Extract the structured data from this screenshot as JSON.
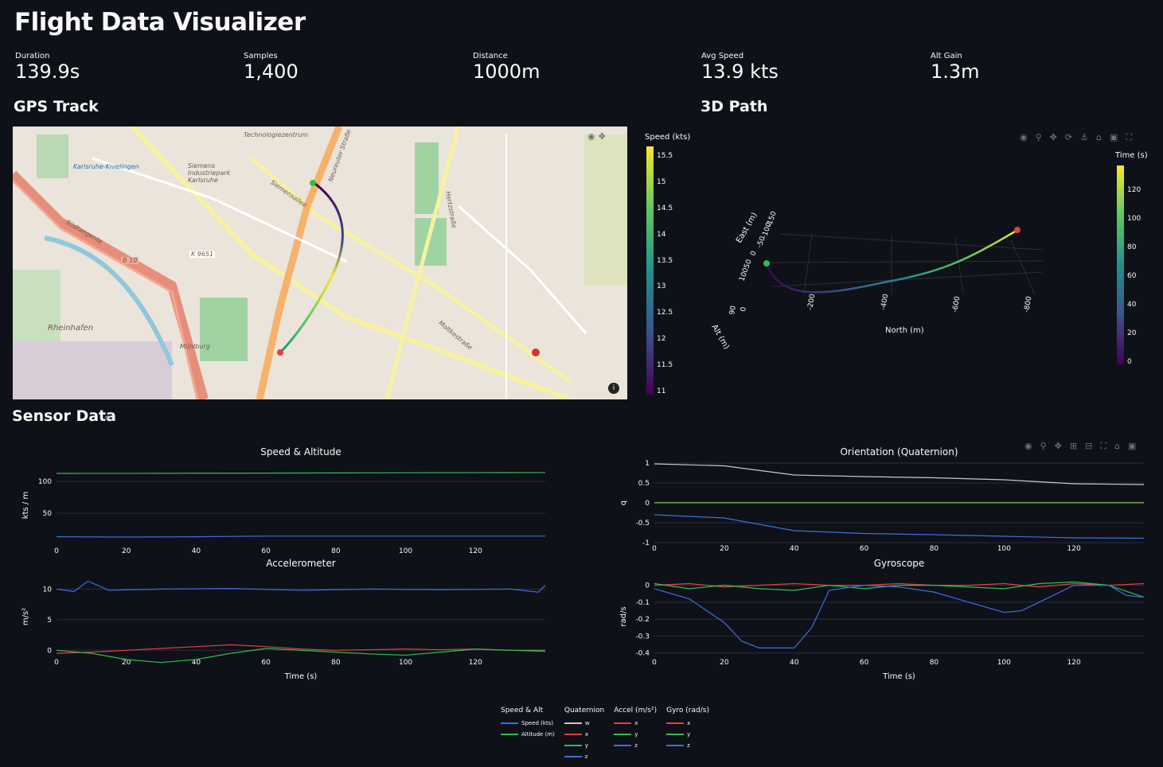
{
  "app": {
    "title": "Flight Data Visualizer"
  },
  "metrics": [
    {
      "label": "Duration",
      "value": "139.9s"
    },
    {
      "label": "Samples",
      "value": "1,400"
    },
    {
      "label": "Distance",
      "value": "1000m"
    },
    {
      "label": "Avg Speed",
      "value": "13.9 kts"
    },
    {
      "label": "Alt Gain",
      "value": "1.3m"
    }
  ],
  "sections": {
    "gps": "GPS Track",
    "path3d": "3D Path",
    "sensor": "Sensor Data"
  },
  "map": {
    "labels": [
      "Karlsruhe-Knielingen",
      "Siemens Industriepark Karlsruhe",
      "Südtangente",
      "B 10",
      "K 9651",
      "Rheinhafen",
      "Mühlburg",
      "Siemensallee",
      "Neureuter Straße",
      "Hertzstraße",
      "Moltkestraße",
      "Technologiezentrum"
    ],
    "colorbar": {
      "title": "Speed (kts)",
      "ticks": [
        "15.5",
        "15",
        "14.5",
        "14",
        "13.5",
        "13",
        "12.5",
        "12",
        "11.5",
        "11"
      ]
    },
    "info_icon": "info-icon"
  },
  "path3d": {
    "colorbar": {
      "title": "Time (s)",
      "ticks": [
        "120",
        "100",
        "80",
        "60",
        "40",
        "20",
        "0"
      ]
    },
    "axes": {
      "x": "North (m)",
      "y": "East (m)",
      "z": "Alt (m)"
    },
    "x_ticks": [
      "-200",
      "-400",
      "-600",
      "-800"
    ],
    "y_ticks": [
      "-150",
      "-100",
      "-50",
      "0",
      "50",
      "100"
    ],
    "z_ticks": [
      "0",
      "90"
    ]
  },
  "chart_data": [
    {
      "type": "line",
      "title": "Speed & Altitude",
      "ylabel": "kts / m",
      "xlabel": "",
      "xlim": [
        0,
        140
      ],
      "ylim": [
        0,
        125
      ],
      "x_ticks": [
        "0",
        "20",
        "40",
        "60",
        "80",
        "100",
        "120"
      ],
      "y_ticks": [
        "50",
        "100"
      ],
      "series": [
        {
          "name": "Speed (kts)",
          "color": "#3b6fe0",
          "x": [
            0,
            20,
            40,
            60,
            80,
            100,
            120,
            140
          ],
          "y": [
            13,
            12.5,
            13,
            14,
            14,
            14,
            14,
            14
          ]
        },
        {
          "name": "Altitude (m)",
          "color": "#2fbf4f",
          "x": [
            0,
            20,
            40,
            60,
            80,
            100,
            120,
            140
          ],
          "y": [
            112.5,
            112.6,
            112.8,
            113.0,
            113.3,
            113.5,
            113.7,
            113.8
          ]
        }
      ]
    },
    {
      "type": "line",
      "title": "Orientation (Quaternion)",
      "ylabel": "q",
      "xlabel": "",
      "xlim": [
        0,
        140
      ],
      "ylim": [
        -1,
        1
      ],
      "x_ticks": [
        "0",
        "20",
        "40",
        "60",
        "80",
        "100",
        "120"
      ],
      "y_ticks": [
        "1",
        "0.5",
        "0",
        "-0.5",
        "-1"
      ],
      "series": [
        {
          "name": "w",
          "color": "#c8c8c8",
          "x": [
            0,
            20,
            40,
            60,
            80,
            100,
            120,
            140
          ],
          "y": [
            0.98,
            0.93,
            0.7,
            0.66,
            0.63,
            0.58,
            0.48,
            0.46
          ]
        },
        {
          "name": "x",
          "color": "#e04040",
          "x": [
            0,
            140
          ],
          "y": [
            0.01,
            0.01
          ]
        },
        {
          "name": "y",
          "color": "#2fbf4f",
          "x": [
            0,
            140
          ],
          "y": [
            0.0,
            0.0
          ]
        },
        {
          "name": "z",
          "color": "#3b6fe0",
          "x": [
            0,
            20,
            40,
            60,
            80,
            100,
            120,
            140
          ],
          "y": [
            -0.3,
            -0.38,
            -0.7,
            -0.77,
            -0.8,
            -0.84,
            -0.88,
            -0.89
          ]
        }
      ]
    },
    {
      "type": "line",
      "title": "Accelerometer",
      "ylabel": "m/s²",
      "xlabel": "Time (s)",
      "xlim": [
        0,
        140
      ],
      "ylim": [
        -1,
        12
      ],
      "x_ticks": [
        "0",
        "20",
        "40",
        "60",
        "80",
        "100",
        "120"
      ],
      "y_ticks": [
        "10",
        "5",
        "0"
      ],
      "series": [
        {
          "name": "x",
          "color": "#e04040",
          "x": [
            0,
            10,
            20,
            30,
            40,
            50,
            60,
            70,
            80,
            90,
            100,
            110,
            120,
            130,
            140
          ],
          "y": [
            -0.5,
            -0.3,
            0,
            0.3,
            0.6,
            0.9,
            0.6,
            0.2,
            0,
            0.1,
            0.2,
            0.1,
            0.2,
            0,
            -0.2
          ]
        },
        {
          "name": "y",
          "color": "#2fbf4f",
          "x": [
            0,
            10,
            20,
            30,
            40,
            50,
            60,
            70,
            80,
            90,
            100,
            110,
            120,
            130,
            140
          ],
          "y": [
            0,
            -0.5,
            -1.5,
            -2,
            -1.5,
            -0.5,
            0.3,
            0,
            -0.3,
            -0.6,
            -0.8,
            -0.3,
            0.2,
            0,
            0
          ]
        },
        {
          "name": "z",
          "color": "#3b6fe0",
          "x": [
            0,
            5,
            9,
            15,
            30,
            50,
            70,
            90,
            110,
            130,
            138,
            140
          ],
          "y": [
            10,
            9.6,
            11.3,
            9.8,
            10,
            10.1,
            9.8,
            10,
            9.9,
            10,
            9.5,
            10.6
          ]
        }
      ]
    },
    {
      "type": "line",
      "title": "Gyroscope",
      "ylabel": "rad/s",
      "xlabel": "Time (s)",
      "xlim": [
        0,
        140
      ],
      "ylim": [
        -0.42,
        0.05
      ],
      "x_ticks": [
        "0",
        "20",
        "40",
        "60",
        "80",
        "100",
        "120"
      ],
      "y_ticks": [
        "0",
        "-0.1",
        "-0.2",
        "-0.3",
        "-0.4"
      ],
      "series": [
        {
          "name": "x",
          "color": "#e04040",
          "x": [
            0,
            10,
            20,
            30,
            40,
            50,
            60,
            70,
            80,
            90,
            100,
            110,
            120,
            130,
            140
          ],
          "y": [
            0.0,
            0.01,
            -0.01,
            0.0,
            0.01,
            0.0,
            0.0,
            0.01,
            0.0,
            0.0,
            0.01,
            -0.01,
            0.01,
            0.0,
            0.01
          ]
        },
        {
          "name": "y",
          "color": "#2fbf4f",
          "x": [
            0,
            10,
            20,
            30,
            40,
            50,
            60,
            70,
            80,
            90,
            100,
            110,
            120,
            130,
            140
          ],
          "y": [
            0.01,
            -0.02,
            0.0,
            -0.02,
            -0.03,
            0.0,
            -0.02,
            0.0,
            0.0,
            -0.01,
            -0.02,
            0.01,
            0.02,
            0.0,
            -0.07
          ]
        },
        {
          "name": "z",
          "color": "#3b6fe0",
          "x": [
            0,
            10,
            20,
            25,
            30,
            40,
            45,
            50,
            60,
            70,
            80,
            90,
            100,
            105,
            110,
            120,
            130,
            135,
            140
          ],
          "y": [
            -0.02,
            -0.08,
            -0.22,
            -0.33,
            -0.37,
            -0.37,
            -0.25,
            -0.03,
            0.0,
            -0.01,
            -0.04,
            -0.1,
            -0.16,
            -0.15,
            -0.1,
            0.0,
            0.0,
            -0.06,
            -0.07
          ]
        }
      ]
    }
  ],
  "legend": [
    {
      "title": "Speed & Alt",
      "items": [
        {
          "label": "Speed (kts)",
          "color": "#3b6fe0"
        },
        {
          "label": "Altitude (m)",
          "color": "#2fbf4f"
        }
      ]
    },
    {
      "title": "Quaternion",
      "items": [
        {
          "label": "w",
          "color": "#c8c8c8"
        },
        {
          "label": "x",
          "color": "#e04040"
        },
        {
          "label": "y",
          "color": "#2fbf4f"
        },
        {
          "label": "z",
          "color": "#3b6fe0"
        }
      ]
    },
    {
      "title": "Accel (m/s²)",
      "items": [
        {
          "label": "x",
          "color": "#e04040"
        },
        {
          "label": "y",
          "color": "#2fbf4f"
        },
        {
          "label": "z",
          "color": "#3b6fe0"
        }
      ]
    },
    {
      "title": "Gyro (rad/s)",
      "items": [
        {
          "label": "x",
          "color": "#e04040"
        },
        {
          "label": "y",
          "color": "#2fbf4f"
        },
        {
          "label": "z",
          "color": "#3b6fe0"
        }
      ]
    }
  ]
}
